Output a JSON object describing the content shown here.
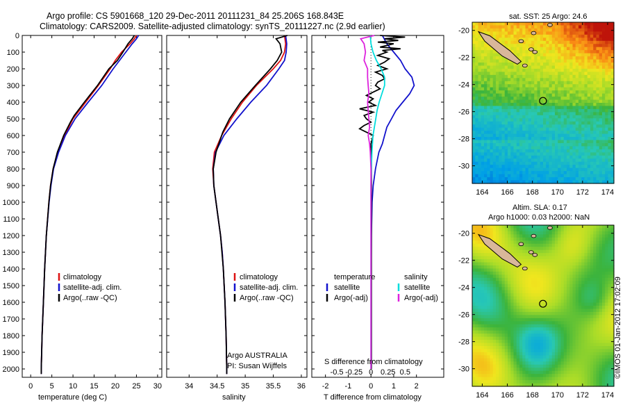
{
  "title": {
    "line1": "Argo profile: CS 5901668_120 29-Dec-2011 20111231_84 25.206S 168.843E",
    "line2": "Climatology: CARS2009. Satellite-adjusted climatology: synTS_20111227.nc (2.9d earlier)"
  },
  "watermark": "©IMOS 01-Jan-2012 17:02:09",
  "colors": {
    "climatology": "#dd1111",
    "satellite": "#1111cc",
    "argo": "#000000",
    "sat_salinity": "#00dddd",
    "argo_salinity": "#dd22dd",
    "land": "#d9b79a"
  },
  "depth_axis": {
    "ticks": [
      0,
      100,
      200,
      300,
      400,
      500,
      600,
      700,
      800,
      900,
      1000,
      1100,
      1200,
      1300,
      1400,
      1500,
      1600,
      1700,
      1800,
      1900,
      2000
    ]
  },
  "chart_data": [
    {
      "type": "line",
      "name": "temperature",
      "xlabel": "temperature (deg C)",
      "ylim": [
        2050,
        0
      ],
      "xlim": [
        -2,
        31
      ],
      "xticks": [
        "0",
        "5",
        "10",
        "15",
        "20",
        "25",
        "30"
      ],
      "xtick_values": [
        0,
        5,
        10,
        15,
        20,
        25,
        30
      ],
      "legend": [
        "climatology",
        "satellite-adj. clim.",
        "Argo(..raw -QC)"
      ],
      "series": [
        {
          "name": "climatology",
          "depth": [
            0,
            20,
            50,
            100,
            150,
            200,
            300,
            400,
            500,
            600,
            700,
            800,
            900,
            1000,
            1200,
            1400,
            1600,
            1800,
            2000,
            2030
          ],
          "values": [
            25,
            24.5,
            23.5,
            21.5,
            20,
            18.8,
            16,
            13,
            10,
            8,
            6.4,
            5.3,
            4.7,
            4.3,
            3.7,
            3.3,
            3,
            2.7,
            2.5,
            2.5
          ]
        },
        {
          "name": "satellite-adj. clim.",
          "depth": [
            0,
            20,
            50,
            100,
            150,
            200,
            300,
            400,
            500,
            600,
            700,
            800,
            900,
            1000,
            1200,
            1400,
            1600,
            1800,
            2000,
            2030
          ],
          "values": [
            25.5,
            25,
            24,
            22.5,
            21,
            19.5,
            16.8,
            13.6,
            10.5,
            8.2,
            6.6,
            5.4,
            4.8,
            4.35,
            3.7,
            3.3,
            3,
            2.7,
            2.5,
            2.5
          ]
        },
        {
          "name": "Argo(..raw -QC)",
          "depth": [
            0,
            20,
            50,
            100,
            150,
            200,
            300,
            400,
            480,
            520,
            600,
            700,
            800,
            900,
            1000,
            1200,
            1400,
            1600,
            1800,
            2000,
            2030
          ],
          "values": [
            24.5,
            24,
            23,
            21.8,
            20.5,
            18.5,
            15.8,
            12.7,
            10.3,
            9.4,
            7.8,
            6.3,
            5.3,
            4.7,
            4.3,
            3.7,
            3.3,
            3,
            2.7,
            2.5,
            2.5
          ]
        }
      ]
    },
    {
      "type": "line",
      "name": "salinity",
      "xlabel": "salinity",
      "ylim": [
        2050,
        0
      ],
      "xlim": [
        33.6,
        36.1
      ],
      "xticks": [
        "34",
        "34.5",
        "35",
        "35.5",
        "36"
      ],
      "xtick_values": [
        34,
        34.5,
        35,
        35.5,
        36
      ],
      "legend": [
        "climatology",
        "satellite-adj. clim.",
        "Argo(..raw -QC)"
      ],
      "annotation": [
        "Argo AUSTRALIA",
        "PI: Susan Wijffels"
      ],
      "series": [
        {
          "name": "climatology",
          "depth": [
            0,
            50,
            100,
            150,
            200,
            300,
            400,
            500,
            600,
            700,
            800,
            900,
            1000,
            1100,
            1200,
            1300,
            1400,
            1600,
            1800,
            2000,
            2030
          ],
          "values": [
            35.7,
            35.72,
            35.7,
            35.63,
            35.5,
            35.2,
            34.95,
            34.75,
            34.58,
            34.45,
            34.42,
            34.44,
            34.48,
            34.52,
            34.56,
            34.59,
            34.61,
            34.64,
            34.66,
            34.67,
            34.67
          ]
        },
        {
          "name": "satellite-adj. clim.",
          "depth": [
            0,
            50,
            100,
            150,
            200,
            300,
            400,
            500,
            600,
            700,
            800,
            900,
            1000,
            1100,
            1200,
            1300,
            1400,
            1600,
            1800,
            2000,
            2030
          ],
          "values": [
            35.72,
            35.74,
            35.73,
            35.7,
            35.6,
            35.38,
            35.1,
            34.85,
            34.62,
            34.47,
            34.43,
            34.44,
            34.48,
            34.52,
            34.56,
            34.59,
            34.61,
            34.64,
            34.66,
            34.67,
            34.67
          ]
        },
        {
          "name": "Argo(..raw -QC)",
          "depth": [
            0,
            20,
            50,
            100,
            150,
            200,
            300,
            400,
            500,
            580,
            620,
            700,
            800,
            900,
            1000,
            1200,
            1400,
            1600,
            1800,
            2000,
            2030
          ],
          "values": [
            35.75,
            35.55,
            35.62,
            35.65,
            35.57,
            35.45,
            35.18,
            34.92,
            34.72,
            34.6,
            34.56,
            34.48,
            34.43,
            34.44,
            34.48,
            34.56,
            34.61,
            34.64,
            34.66,
            34.67,
            34.67
          ]
        }
      ]
    },
    {
      "type": "line",
      "name": "difference",
      "xlabel": "T difference from climatology",
      "xlabel2": "S difference from climatology",
      "ylim": [
        2050,
        0
      ],
      "xlim": [
        -2.6,
        3.2
      ],
      "xticks": [
        "-2",
        "-1",
        "0",
        "1",
        "2"
      ],
      "xtick_values": [
        -2,
        -1,
        0,
        1,
        2
      ],
      "sticks": [
        "-0.5",
        "-0.25",
        "0",
        "0.25",
        "0.5"
      ],
      "stick_values": [
        -0.5,
        -0.25,
        0,
        0.25,
        0.5
      ],
      "legend_t_title": "temperature",
      "legend_s_title": "salinity",
      "legend_t": [
        "satellite",
        "Argo(-adj)"
      ],
      "legend_s": [
        "satellite",
        "Argo(-adj)"
      ],
      "series": [
        {
          "name": "T satellite",
          "depth": [
            0,
            50,
            100,
            150,
            200,
            250,
            300,
            350,
            400,
            450,
            500,
            550,
            600,
            650,
            700,
            800,
            900,
            1000,
            1200,
            1400,
            1600,
            1800,
            2000
          ],
          "values": [
            0.5,
            0.7,
            1.0,
            1.3,
            1.5,
            1.8,
            1.9,
            1.7,
            1.4,
            1.1,
            0.9,
            0.7,
            0.6,
            0.5,
            0.35,
            0.2,
            0.1,
            0.05,
            0.02,
            0.01,
            0.01,
            0.01,
            0.01
          ]
        },
        {
          "name": "T Argo(-adj)",
          "depth": [
            0,
            10,
            20,
            30,
            40,
            50,
            60,
            70,
            80,
            90,
            100,
            120,
            140,
            160,
            180,
            200,
            220,
            240,
            260,
            280,
            300,
            320,
            340,
            360,
            380,
            400,
            420,
            440,
            460,
            480,
            500,
            520,
            540,
            560,
            580,
            600,
            650,
            700,
            800,
            900,
            1000,
            1200,
            1400,
            1600,
            1800,
            2000
          ],
          "values": [
            0.4,
            1.5,
            0.6,
            1.2,
            0.3,
            1.0,
            0.7,
            0.4,
            1.3,
            0.5,
            0.7,
            0.3,
            0.8,
            0.6,
            0.3,
            0.7,
            0.2,
            0.5,
            0.6,
            0.3,
            0.2,
            0.4,
            0.1,
            -0.2,
            0.1,
            -0.1,
            0.2,
            -0.5,
            0.1,
            -0.3,
            -0.2,
            0.0,
            -0.3,
            -0.5,
            -0.2,
            0.1,
            0.0,
            0.02,
            0.02,
            0.02,
            0.02,
            0.02,
            0.02,
            0.02,
            0.02,
            0.02
          ]
        },
        {
          "name": "S satellite",
          "depth": [
            0,
            50,
            100,
            150,
            200,
            250,
            300,
            350,
            400,
            450,
            500,
            550,
            600,
            700,
            800,
            900,
            1000,
            1200,
            1400,
            1600,
            1800,
            2000
          ],
          "values": [
            -0.01,
            0.0,
            0.03,
            0.08,
            0.15,
            0.2,
            0.2,
            0.16,
            0.12,
            0.09,
            0.07,
            0.05,
            0.03,
            0.015,
            0.005,
            0,
            0,
            0,
            0,
            0,
            0,
            0
          ]
        },
        {
          "name": "S Argo(-adj)",
          "depth": [
            0,
            20,
            50,
            100,
            150,
            200,
            250,
            300,
            350,
            400,
            450,
            500,
            550,
            600,
            650,
            700,
            800,
            900,
            1000,
            1200,
            1400,
            1600,
            1800,
            2000
          ],
          "values": [
            0.05,
            -0.15,
            -0.1,
            -0.08,
            -0.1,
            -0.05,
            -0.05,
            -0.04,
            -0.03,
            -0.05,
            -0.04,
            -0.03,
            -0.02,
            -0.04,
            -0.02,
            -0.01,
            0,
            0,
            0,
            0,
            0,
            0,
            0,
            0
          ]
        }
      ]
    }
  ],
  "maps": {
    "sst": {
      "title": "sat. SST: 25 Argo: 24.6",
      "xticks": [
        "164",
        "166",
        "168",
        "170",
        "172",
        "174"
      ],
      "yticks": [
        "-20",
        "-22",
        "-24",
        "-26",
        "-28",
        "-30"
      ]
    },
    "sla": {
      "title1": "Altim. SLA: 0.17",
      "title2": "Argo h1000: 0.03 h2000: NaN",
      "xticks": [
        "164",
        "166",
        "168",
        "170",
        "172",
        "174"
      ],
      "yticks": [
        "-20",
        "-22",
        "-24",
        "-26",
        "-28",
        "-30"
      ]
    },
    "marker": {
      "lon": 168.843,
      "lat": -25.206
    },
    "lon_range": [
      163.2,
      174.5
    ],
    "lat_range": [
      -31.3,
      -19.4
    ]
  }
}
